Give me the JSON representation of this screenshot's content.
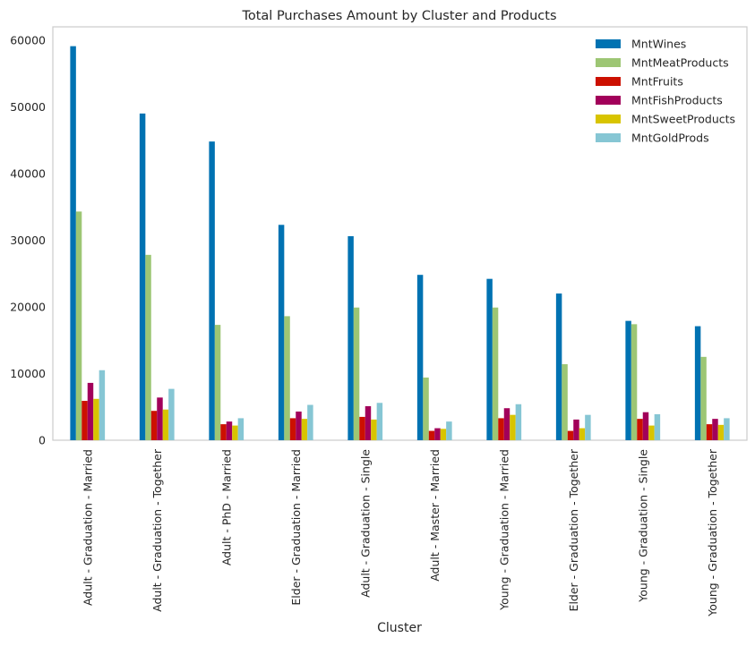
{
  "chart_data": {
    "type": "bar",
    "title": "Total Purchases Amount by Cluster and Products",
    "xlabel": "Cluster",
    "ylabel": "",
    "ylim": [
      0,
      62000
    ],
    "yticks": [
      0,
      10000,
      20000,
      30000,
      40000,
      50000,
      60000
    ],
    "grid": false,
    "legend_position": "top-right",
    "categories": [
      "Adult - Graduation - Married",
      "Adult - Graduation - Together",
      "Adult - PhD - Married",
      "Elder - Graduation - Married",
      "Adult - Graduation - Single",
      "Adult - Master - Married",
      "Young - Graduation - Married",
      "Elder - Graduation - Together",
      "Young - Graduation - Single",
      "Young - Graduation - Together"
    ],
    "series": [
      {
        "name": "MntWines",
        "color": "#0072b2",
        "values": [
          59100,
          49000,
          44800,
          32300,
          30600,
          24800,
          24200,
          22000,
          17900,
          17100
        ]
      },
      {
        "name": "MntMeatProducts",
        "color": "#9dc674",
        "values": [
          34300,
          27800,
          17300,
          18600,
          19900,
          9400,
          19900,
          11400,
          17400,
          12500
        ]
      },
      {
        "name": "MntFruits",
        "color": "#cc1000",
        "values": [
          5900,
          4400,
          2400,
          3300,
          3500,
          1400,
          3300,
          1400,
          3200,
          2400
        ]
      },
      {
        "name": "MntFishProducts",
        "color": "#a2005a",
        "values": [
          8600,
          6400,
          2800,
          4300,
          5100,
          1800,
          4800,
          3100,
          4200,
          3200
        ]
      },
      {
        "name": "MntSweetProducts",
        "color": "#d8c400",
        "values": [
          6200,
          4600,
          2200,
          3200,
          3100,
          1700,
          3800,
          1800,
          2200,
          2300
        ]
      },
      {
        "name": "MntGoldProds",
        "color": "#86c6d4",
        "values": [
          10500,
          7700,
          3300,
          5300,
          5600,
          2800,
          5400,
          3800,
          3900,
          3300
        ]
      }
    ]
  }
}
